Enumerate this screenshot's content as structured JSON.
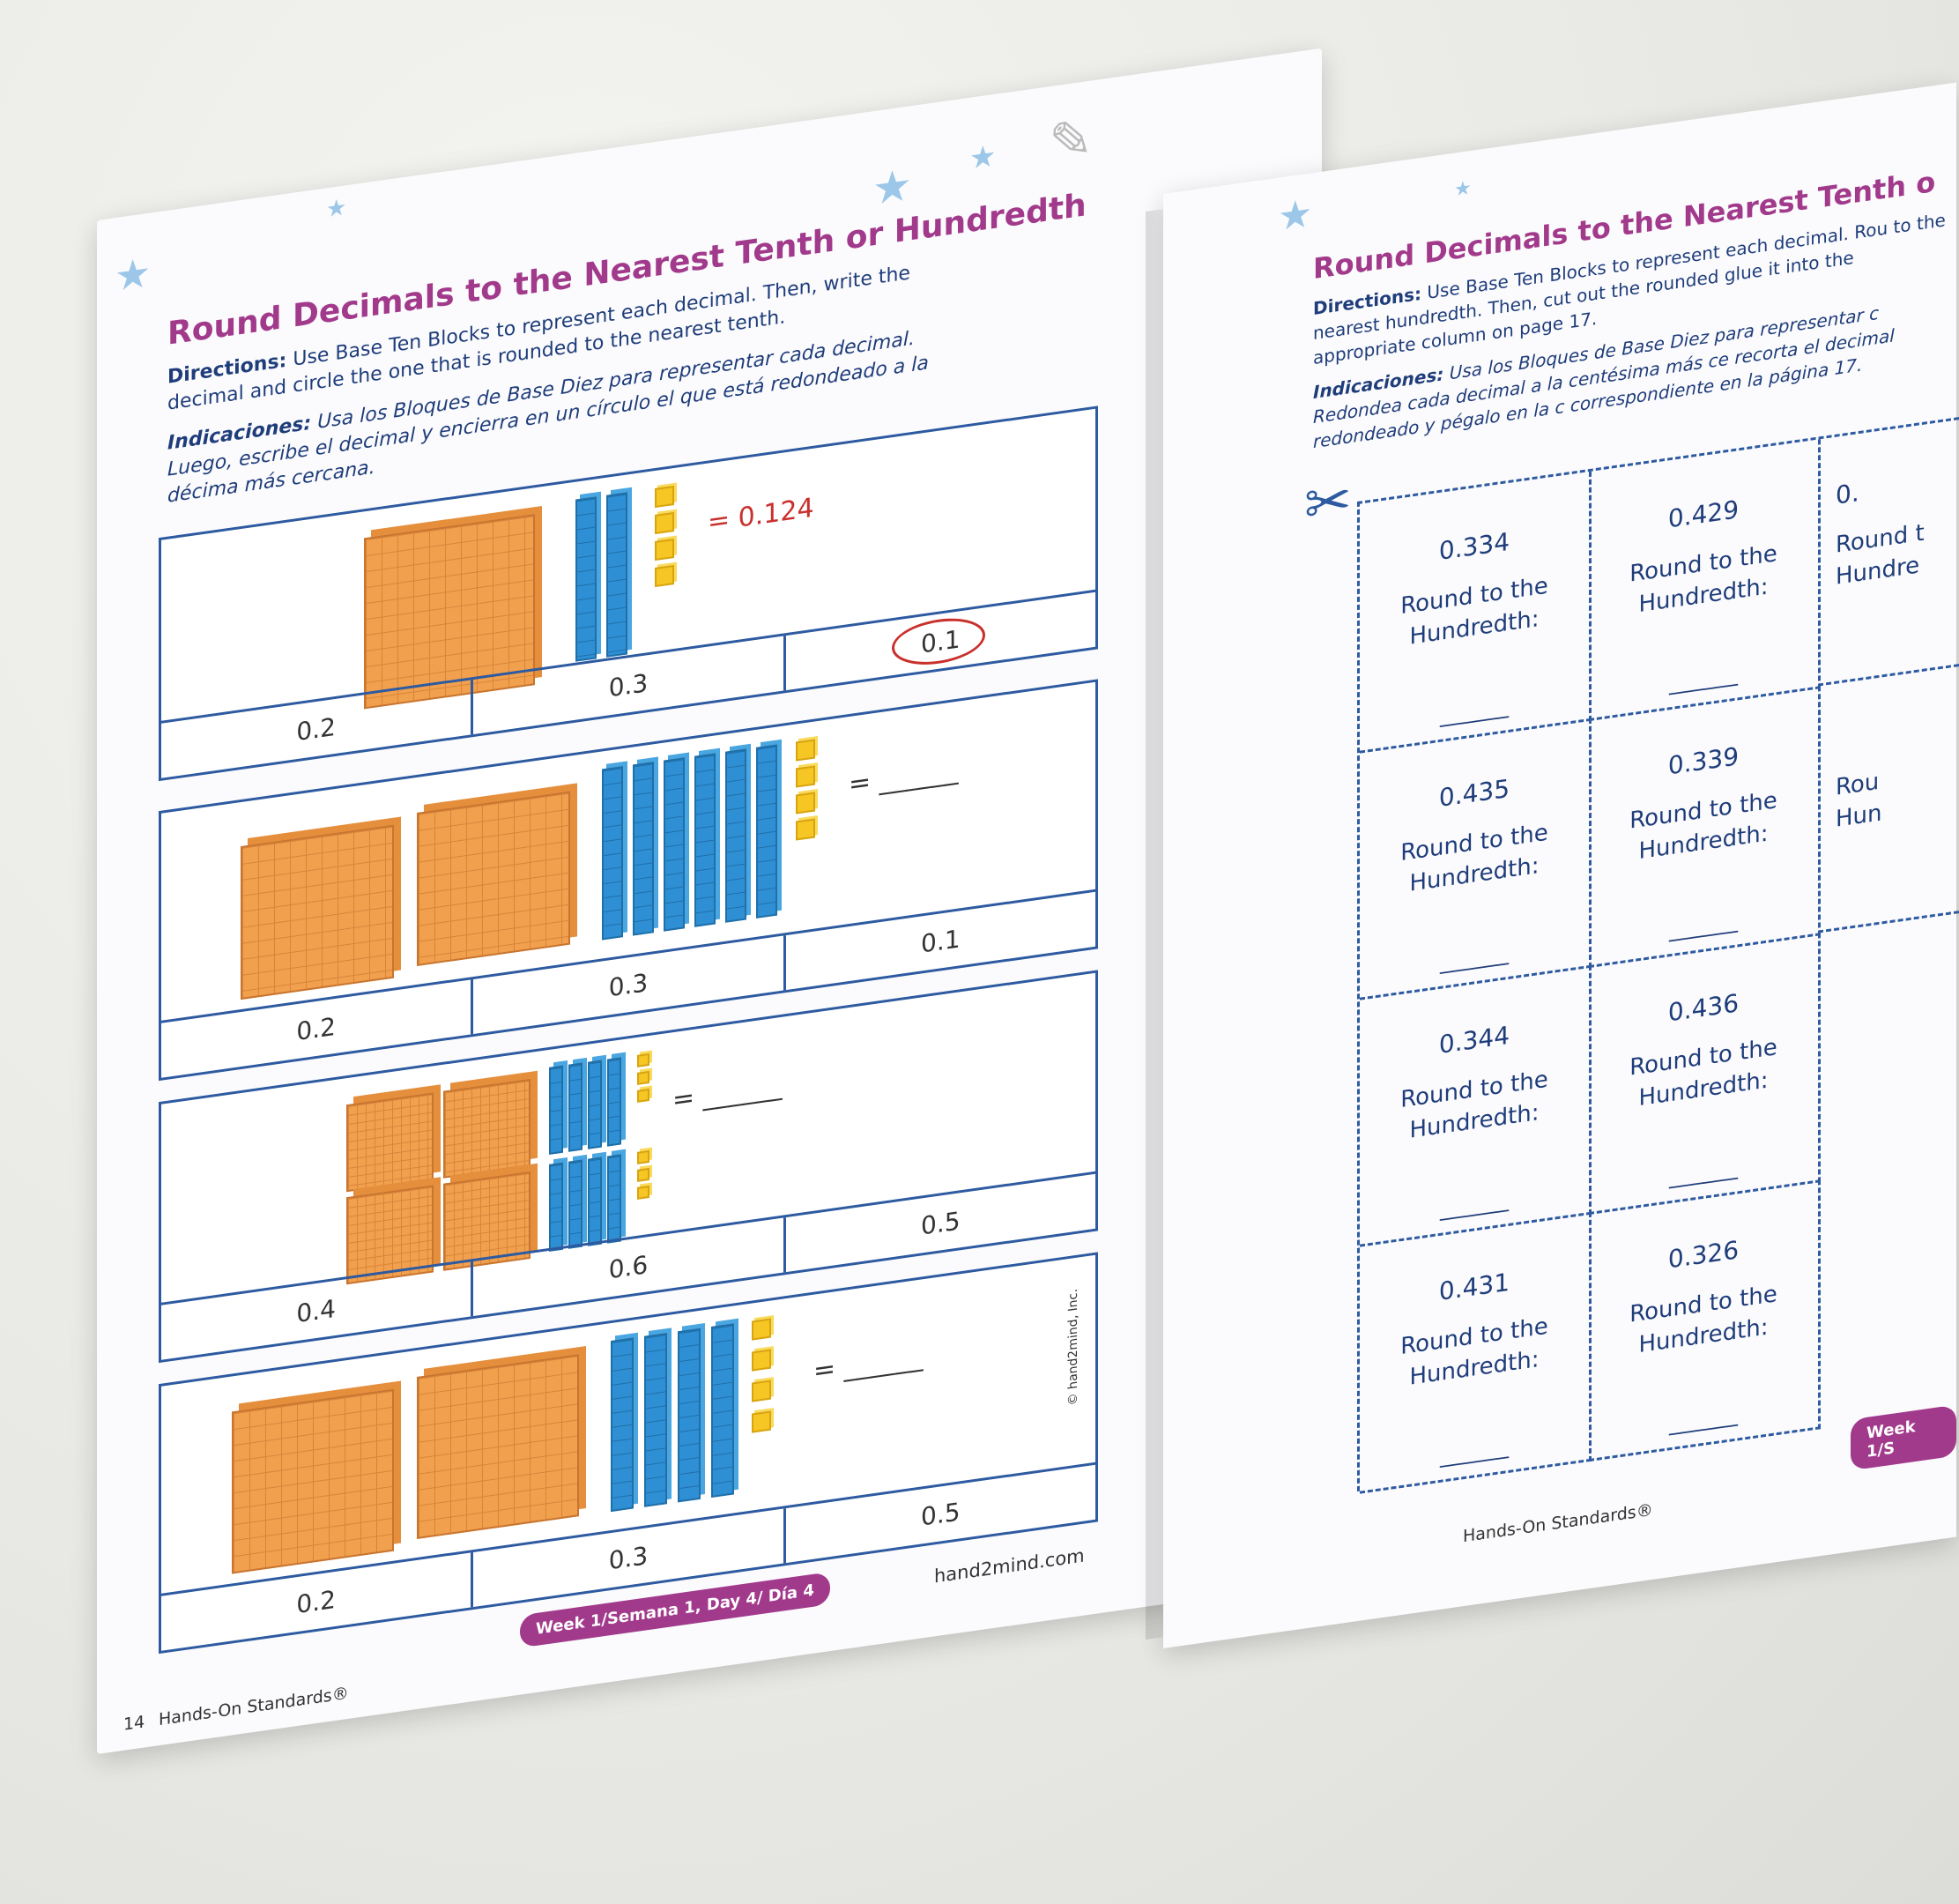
{
  "left_page": {
    "title": "Round Decimals to the Nearest Tenth or Hundredth",
    "directions_label": "Directions:",
    "directions_text": "Use Base Ten Blocks to represent each decimal. Then, write the decimal and circle the one that is rounded to the nearest tenth.",
    "indicaciones_label": "Indicaciones:",
    "indicaciones_text": "Usa los Bloques de Base Diez para representar cada decimal. Luego, escribe el decimal y encierra en un círculo el que está redondeado a la décima más cercana.",
    "problems": [
      {
        "answer": "= 0.124",
        "options": [
          "0.2",
          "0.3",
          "0.1"
        ],
        "circled": "0.1"
      },
      {
        "answer": "= ______",
        "options": [
          "0.2",
          "0.3",
          "0.1"
        ]
      },
      {
        "answer": "= ______",
        "options": [
          "0.4",
          "0.6",
          "0.5"
        ]
      },
      {
        "answer": "= ______",
        "options": [
          "0.2",
          "0.3",
          "0.5"
        ]
      }
    ],
    "footer_pill": "Week 1/Semana 1, Day 4/ Día 4",
    "page_number": "14",
    "publication": "Hands-On Standards®",
    "website": "hand2mind.com",
    "copyright": "© hand2mind, Inc."
  },
  "right_page": {
    "title": "Round Decimals to the Nearest Tenth o",
    "directions_label": "Directions:",
    "directions_text": "Use Base Ten Blocks to represent each decimal. Rou to the nearest hundredth. Then, cut out the rounded glue it into the appropriate column on page 17.",
    "indicaciones_label": "Indicaciones:",
    "indicaciones_text": "Usa los Bloques de Base Diez para representar c Redondea cada decimal a la centésima más ce recorta el decimal redondeado y pégalo en la c correspondiente en la página 17.",
    "card_label": "Round to the Hundredth:",
    "blank": "______",
    "cards": [
      [
        "0.334",
        "0.429",
        "0."
      ],
      [
        "0.435",
        "0.339",
        ""
      ],
      [
        "0.344",
        "0.436",
        ""
      ],
      [
        "0.431",
        "0.326",
        ""
      ]
    ],
    "partial_label_1": "Round t",
    "partial_label_2": "Hundre",
    "partial_label_3": "Rou",
    "partial_label_4": "Hun",
    "footer_pill": "Week 1/S",
    "publication": "Hands-On Standards®"
  },
  "colors": {
    "title": "#a23a8c",
    "blue": "#2d5aa0",
    "orange": "#f1a04e",
    "rod": "#2f8fd4",
    "unit": "#f6c624",
    "red": "#c9302c"
  }
}
